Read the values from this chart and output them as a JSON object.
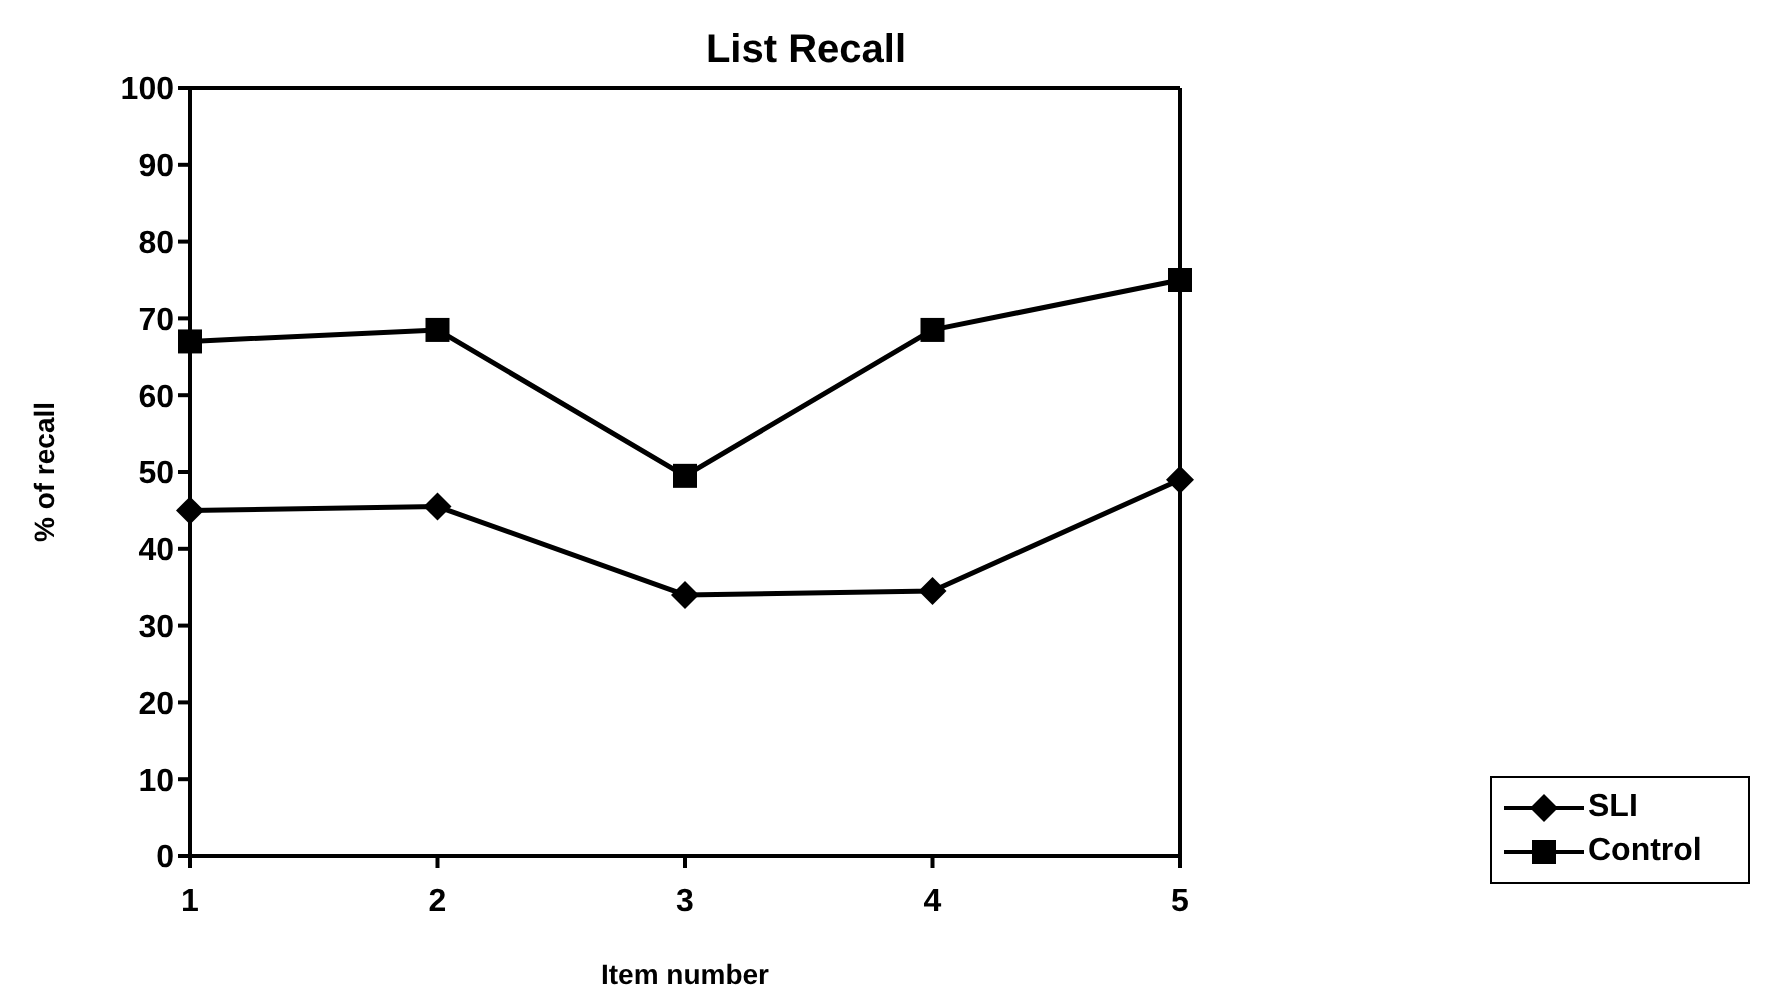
{
  "chart_data": {
    "type": "line",
    "title": "List Recall",
    "xlabel": "Item number",
    "ylabel": "% of recall",
    "categories": [
      "1",
      "2",
      "3",
      "4",
      "5"
    ],
    "series": [
      {
        "name": "SLI",
        "color": "#000000",
        "marker": "diamond",
        "values": [
          45,
          45.5,
          34,
          34.5,
          49
        ]
      },
      {
        "name": "Control",
        "color": "#000000",
        "marker": "square",
        "values": [
          67,
          68.5,
          49.5,
          68.5,
          75
        ]
      }
    ],
    "ylim": [
      0,
      100
    ],
    "yticks": [
      0,
      10,
      20,
      30,
      40,
      50,
      60,
      70,
      80,
      90,
      100
    ],
    "grid": false,
    "legend": "bottom right"
  }
}
